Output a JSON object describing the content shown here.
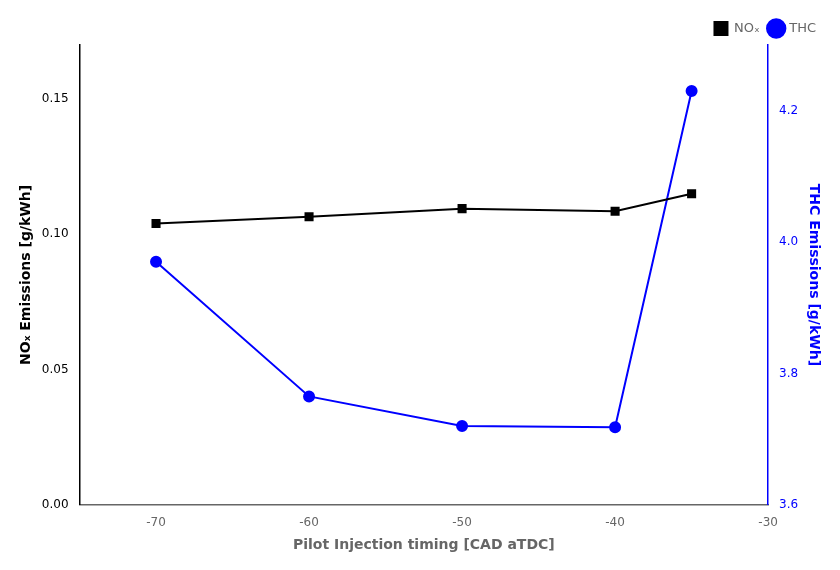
{
  "chart_data": {
    "type": "line",
    "xlabel": "Pilot Injection timing [CAD aTDC]",
    "ylabel": "NOₓ Emissions [g/kWh]",
    "y2label": "THC Emissions [g/kWh]",
    "x": [
      -70,
      -60,
      -50,
      -40,
      -35
    ],
    "series": [
      {
        "name": "NOₓ",
        "color": "#000000",
        "marker": "square",
        "line_style": "solid",
        "values": [
          0.104,
          0.1065,
          0.1095,
          0.1085,
          0.115
        ]
      },
      {
        "name": "THC",
        "color": "#0000FF",
        "marker": "circle",
        "line_style": "solid",
        "axis": "y2",
        "values": [
          3.97,
          3.765,
          3.72,
          3.718,
          4.23
        ]
      }
    ],
    "xlim": [
      -75,
      -30
    ],
    "xticks": [
      -70,
      -60,
      -50,
      -40,
      -30
    ],
    "ylim": [
      0.0,
      0.17
    ],
    "yticks": [
      {
        "value": 0,
        "label": "0.00"
      },
      0.05,
      {
        "value": 0.1,
        "label": "0.10"
      },
      0.15
    ],
    "y2lim": [
      3.6,
      4.3
    ],
    "y2ticks": [
      3.6,
      3.8,
      {
        "value": 4.0,
        "label": "4.0"
      },
      4.2
    ],
    "legend": "upper right",
    "grid": false
  }
}
